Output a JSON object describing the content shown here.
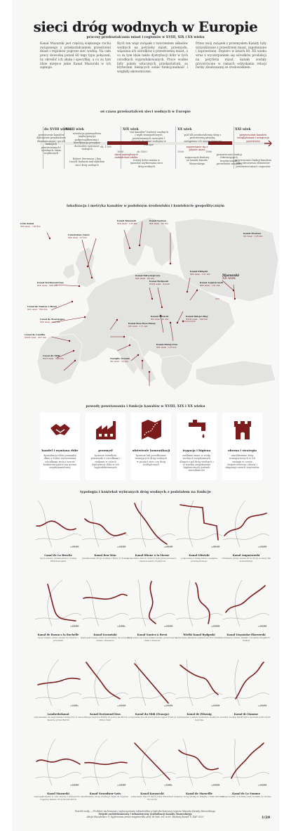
{
  "header": {
    "title": "sieci dróg wodnych w Europie",
    "subtitle": "procesy przekształcania miast i regionów w XVIII, XIX i XX wieku"
  },
  "intro": {
    "col1": "Kanał Mazurski jest częścią większego ruchu związanego z przekształcaniem przestrzeni miast i regionów poprzez sieć wodną. Na całe pracy dowodzę ponad 60 tego typu połączeń, by określić ich skalę i specyfikę, a co za tym idzie miejsce jakie Kanał Mazurski w ich zajmuje.",
    "col2": "Rych ten wiąż związek z tworzeniem układów wodnych na potrzeby miast, przemysłu, wiązania ich ośrodków z przestrzenią miast, a co za tym idzie także dystrybucji dóbr w tych ośrodkach wyprodukowanych. Prace wodne były polem sztucznych przekształceń, za kryterium bieżących sobie funkcjonalność i względy ekonomiczne.",
    "col3": "Przez swój związek z przemysłem Kanały były wyszukiwane z przestrzeni miast, zapomniane i zaprzestane. Dopiero w latach 80. XX wieku wraz z wyczerpaniem się ośrodków produkcji na peryferia miast, kanały zostały przywrócone w ramach odzyskania relacji formy zbudowanej ze środowiskiem."
  },
  "timeline": {
    "heading": "oś czasu przekształceń sieci wodnych w Europie",
    "centuries": [
      "do XVIII wieku",
      "XVIII wiek",
      "XIX wiek",
      "XX wiek",
      "XXI wiek"
    ],
    "years": [
      "ok. 1760",
      "1800",
      "ok.1830",
      "1900",
      "1980"
    ],
    "notes": {
      "pre": "przestrzenie kanałów dyktowane przykładowo ekonomicznymi i po ich funkcjach przestrzennych i cywilnych, także wojskowych",
      "xviii_top": "rewolucja przemysłowa Anglia/pozycja podporządkowania i koordynacja przepływ dochodów systemów wodnych",
      "xviii_bottom": "Robert Stevenson i Ken Lunell: badania nad układem sieci dróg wodnych",
      "xix_top": "\"era kanałów\" budowy osadnych i węźli transportowych przestrzennych rozwojów i różnych drogami wodnymi w Europie",
      "xix_mid": "okres największych rozbudowań szlaku",
      "xix_bottom": "rozwój kolei zmiana w sposobie użytkowania sieci dróg wodnych",
      "xx_top": "pod KR przekształcenia dróg z przestrzenią miejską, zastąpienie ich innymi formami",
      "xx_mid": "zaprzestanie się z planów miast",
      "xx_bottom": "rozpoczęcie budowy na kanale Kanału Mazurskiego",
      "xxi_top": "przywracanie kanałów uwzględnianie i integracja przestrzeni",
      "xxi_mid": "przywrócenie funkcji rekreacyjnych, turystycznych i przestrzeni miejskiej",
      "xxi_bottom": "przywracanie funkcji kanałom jako utworzeniu elementów przestrzeni miast i regionów"
    }
  },
  "map": {
    "heading": "lokalizacja i metryka kanałów w podobnym środowisku i kontekście geopolitycznym",
    "labels": [
      {
        "name": "Göta Kanal",
        "info": "XIX wiek · 190 km"
      },
      {
        "name": "Kanał Telemark",
        "info": "XIX wiek · 105 km"
      },
      {
        "name": "Kanał Saimaa",
        "info": "XIX wiek · 43 km"
      },
      {
        "name": "Caledonian Canal",
        "info": "XIX wiek · 97 km"
      },
      {
        "name": "Kanał Elbląski",
        "info": "XIX wiek · 151 km"
      },
      {
        "name": "Kanał Augustowski",
        "info": "XIX wiek · 101 km"
      },
      {
        "name": "Kanał Bydgoski",
        "info": "XVIII wiek · 24 km"
      },
      {
        "name": "Mazurski",
        "info": "XX wiek"
      },
      {
        "name": "Kanał Dortmund-Ems",
        "info": "XIX wiek · 269 km"
      },
      {
        "name": "Kanał Ren-Men-Dunaj",
        "info": "XX wiek · 171 km"
      },
      {
        "name": "Canal du Midi",
        "info": "XVII wiek · 240 km"
      },
      {
        "name": "Canal de Bourgogne",
        "info": "XIX wiek · 242 km"
      },
      {
        "name": "Canal de Nantes à Brest",
        "info": "XIX wiek · 364 km"
      },
      {
        "name": "Canal de Castilla",
        "info": "XVIII wiek · 207 km"
      },
      {
        "name": "Naviglio Grande",
        "info": "XII wiek · 50 km"
      },
      {
        "name": "Kanał Dunaj-Cisa",
        "info": "XIX wiek · 123 km"
      },
      {
        "name": "Kanał Odra-Szprewa",
        "info": "XIX wiek · 90 km"
      },
      {
        "name": "Kanał Gliwicki",
        "info": "XX wiek · 41 km"
      },
      {
        "name": "Kanał Dniepr-Bug",
        "info": "XVIII wiek · 196 km"
      },
      {
        "name": "Kanał Moskwa",
        "info": "XX wiek · 128 km"
      }
    ]
  },
  "functions": {
    "heading": "powody powstawania i funkcje kanałów w XVIII, XIX i XX wieku",
    "items": [
      {
        "icon": "handshake-icon",
        "title": "handel i wymiana dóbr",
        "text": "dystrybucja dóbr pomiędzy dłnie a dobra wytworzenia ośrodkami życia i wzrost konkurencyjności na arenie międzynarodowej"
      },
      {
        "icon": "factory-icon",
        "title": "przemysł",
        "text": "łączenie ośrodków przemysłu z ośrodkami i rynkami w celach dystrybucji dóbr w ich wyprodukowanych"
      },
      {
        "icon": "map-route-icon",
        "title": "ułatwienie komunikacji",
        "text": "łączenie lub przedłużanie istniejących dróg wodnych w postaci sieci czy dróg śródlądowych"
      },
      {
        "icon": "faucet-icon",
        "title": "irygacja i higiena",
        "text": "zasilanie miast w wodę, wodnych zwiększanych długości pól dróg wodnych i w wyniku zaspokojenie higienicznych potrzeb mieszkańców"
      },
      {
        "icon": "tower-icon",
        "title": "obrona i strategia",
        "text": "umożliwienie dróg transportowych w ich zasięgu w czasie bezpieczeństwa obrony i ekspansji swoich terytoriów"
      }
    ]
  },
  "typology": {
    "heading": "typologia i kontekst wybranych dróg wodnych z podziałem na funkcje",
    "canals": [
      {
        "name": "Canal de La Bruche",
        "desc": "łączy tereny przemysłowe z rzeką Strasbourgiem",
        "km": "20 km"
      },
      {
        "name": "Kanał Ren-Men",
        "desc": "przedłużenie drogi wodnej z Renu w dolinie",
        "km": "10 km"
      },
      {
        "name": "Kanał Rhone à la Marne",
        "desc": "połączenie dwóch dużych rzek przez przełęcz, i zastosowanie dopływów",
        "km": "20 km"
      },
      {
        "name": "Kanał Gliwicki",
        "desc": "połączenie z rzeką Odrą i zagłębia przemysłowego",
        "km": "20 km"
      },
      {
        "name": "Kanał Augustowski",
        "desc": "ominięcie przez obszar Prus drogi wodnej dla komunikacji",
        "km": "10 km"
      },
      {
        "name": "Kanał de Rozon a la Rochelle",
        "desc": "łączy miasto przez obszar dochodów i przystani",
        "km": "10 km"
      },
      {
        "name": "Kanał Łuczański",
        "desc": "Zaprojektowany przez pozwolenie na przyszłe wiele i obszarów",
        "km": "5 km"
      },
      {
        "name": "Kanał Nantes à Brest",
        "desc": "połączenie na rzece miast tereny przeciwnych rzeki i terenów",
        "km": "10 km"
      },
      {
        "name": "Wielki Kanał Bydgoski",
        "desc": "połączenie kanałów systemowych z rzekami",
        "km": "10 km"
      },
      {
        "name": "Kanał Lisyańsko-Zborowski",
        "desc": "ominięcie terenu kanału i dodanie miejskich funkcji",
        "km": "10 km"
      },
      {
        "name": "Landwehrkanal",
        "desc": "odpowiadało na zagrożenie transportu w sieci mieście przez Berlin",
        "km": "2 km"
      },
      {
        "name": "Kanał Dortmund-Ems",
        "desc": "obsługa regionu Ruhry do portu na Morzu Północnym",
        "km": "10 km"
      },
      {
        "name": "Kanał du Midi (Francja)",
        "desc": "połączenie dwóch mórz przez region Francji",
        "km": "10 km"
      },
      {
        "name": "Kanał de Pilsenig",
        "desc": "wydrążenie z zadań systemów wodnych w regionie",
        "km": "10 km"
      },
      {
        "name": "Kanał de Damme",
        "desc": "ważny wodny dla Brugii z morzem północnym",
        "km": "10 km"
      },
      {
        "name": "Kanał Mazurski",
        "desc": "zaprojektowany w celu obrony i transportu w regionie Mazur, Prus Wschodnich",
        "km": "10 km"
      },
      {
        "name": "Kanał Nowodwor-Lwiv",
        "desc": "wydłużenie drogi wodnej z rzeki do regionu",
        "km": "10 km"
      },
      {
        "name": "Kanał Korynecki",
        "desc": "połączenie dwóch mórz przez Przesmyk Koryncki",
        "km": "5 km"
      },
      {
        "name": "Kanał de Marseille",
        "desc": "dostawy wody pitnej do miasta z rzeki Durance",
        "km": "10 km"
      },
      {
        "name": "Kanał de La Somme",
        "desc": "droga wodna w dolinie rzeki Somma do morza",
        "km": "10 km"
      }
    ]
  },
  "footer": {
    "line1": "Powrót wody — Problem zachowania i wykorzystania infrastruktury hydrotechnicznej regionu Masuria Kanały Mazurskiego",
    "line2": "Projekt architektoniczny i urbanistyczny rewitalizacji Kanału Mazurskiego",
    "line3": "Alicja Maculewicz © dyplomowa praca magisterska prof. dr hab. inż. arch. Elżbiety Kozak © SAP 2020",
    "page": "1/20"
  },
  "colors": {
    "accent": "#7b1b1b",
    "background": "#f7f7f5",
    "canal": "#7b1b1b",
    "river": "#555555"
  }
}
